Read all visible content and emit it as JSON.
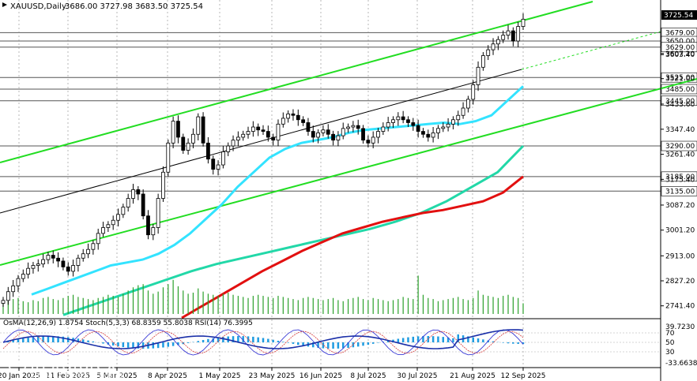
{
  "chart_data": {
    "type": "candlestick",
    "symbol_line": "XAUUSD,Daily",
    "ohlc_line": "3686.00 3727.98 3683.50 3725.54",
    "current_price": "3725.54",
    "price_axis_labels": [
      "3603.40",
      "3607.20",
      "3521.00",
      "3433.60",
      "3347.40",
      "3261.40",
      "3175.40",
      "3087.20",
      "3001.20",
      "2913.00",
      "2827.20",
      "2741.40"
    ],
    "level_labels": [
      "3679.00",
      "3650.00",
      "3629.00",
      "3525.00",
      "3485.00",
      "3445.00",
      "3290.00",
      "3185.00",
      "3135.00"
    ],
    "x_labels": [
      "20 Jan 2025",
      "11 Feb 2025",
      "5 Mar 2025",
      "8 Apr 2025",
      "1 May 2025",
      "23 May 2025",
      "16 Jun 2025",
      "8 Jul 2025",
      "30 Jul 2025",
      "21 Aug 2025",
      "12 Sep 2025"
    ],
    "ylim": [
      2700,
      3780
    ],
    "indicator_text": "OsMA(12,26,9) 1.8754  Stoch(5,3,3) 68.8359 55.8038  RSI(14) 76.3995",
    "indicator_axis_labels": [
      "39.7230",
      "70",
      "50",
      "30",
      "-33.6638"
    ],
    "closes": [
      2760,
      2790,
      2810,
      2835,
      2850,
      2870,
      2880,
      2885,
      2900,
      2915,
      2905,
      2895,
      2875,
      2860,
      2880,
      2905,
      2920,
      2935,
      2955,
      2990,
      3010,
      3020,
      3035,
      3055,
      3080,
      3110,
      3140,
      3125,
      3050,
      2985,
      3010,
      3110,
      3200,
      3300,
      3375,
      3320,
      3275,
      3300,
      3330,
      3390,
      3300,
      3245,
      3210,
      3225,
      3270,
      3290,
      3310,
      3320,
      3330,
      3340,
      3355,
      3345,
      3340,
      3320,
      3310,
      3365,
      3385,
      3400,
      3395,
      3380,
      3370,
      3340,
      3320,
      3335,
      3345,
      3330,
      3310,
      3325,
      3350,
      3355,
      3360,
      3350,
      3310,
      3300,
      3320,
      3340,
      3355,
      3370,
      3380,
      3390,
      3380,
      3370,
      3360,
      3340,
      3330,
      3320,
      3335,
      3350,
      3355,
      3365,
      3380,
      3395,
      3420,
      3450,
      3500,
      3560,
      3600,
      3620,
      3640,
      3655,
      3670,
      3685,
      3650,
      3700,
      3725
    ],
    "volumes": [
      10,
      12,
      14,
      15,
      12,
      11,
      13,
      12,
      15,
      16,
      14,
      13,
      15,
      17,
      18,
      16,
      15,
      14,
      13,
      15,
      16,
      18,
      17,
      16,
      19,
      22,
      25,
      27,
      28,
      22,
      19,
      21,
      25,
      28,
      32,
      26,
      22,
      19,
      20,
      24,
      21,
      19,
      18,
      17,
      19,
      20,
      18,
      17,
      16,
      15,
      17,
      18,
      17,
      16,
      15,
      17,
      16,
      15,
      14,
      13,
      15,
      16,
      15,
      14,
      13,
      14,
      15,
      13,
      12,
      14,
      15,
      16,
      14,
      13,
      15,
      14,
      13,
      12,
      13,
      14,
      16,
      15,
      14,
      36,
      18,
      15,
      14,
      12,
      13,
      14,
      15,
      16,
      14,
      13,
      15,
      22,
      18,
      17,
      16,
      15,
      17,
      18,
      16,
      15,
      10
    ],
    "ma_fast": [
      2780,
      2800,
      2820,
      2840,
      2860,
      2880,
      2890,
      2900,
      2920,
      2950,
      2990,
      3040,
      3090,
      3150,
      3200,
      3250,
      3280,
      3300,
      3310,
      3320,
      3335,
      3345,
      3350,
      3355,
      3360,
      3365,
      3370,
      3365,
      3375,
      3395,
      3445,
      3495
    ],
    "ma_mid": [
      2710,
      2740,
      2770,
      2800,
      2830,
      2860,
      2885,
      2905,
      2925,
      2945,
      2965,
      2985,
      3005,
      3030,
      3060,
      3100,
      3150,
      3200,
      3290
    ],
    "ma_slow": [
      2700,
      2740,
      2780,
      2820,
      2860,
      2895,
      2930,
      2960,
      2990,
      3010,
      3030,
      3045,
      3060,
      3070,
      3085,
      3100,
      3130,
      3185
    ],
    "ma_black": [
      3080,
      3110,
      3140,
      3170,
      3200,
      3230,
      3260,
      3285,
      3310,
      3335,
      3355,
      3375,
      3395,
      3420,
      3450,
      3490,
      3525
    ]
  }
}
